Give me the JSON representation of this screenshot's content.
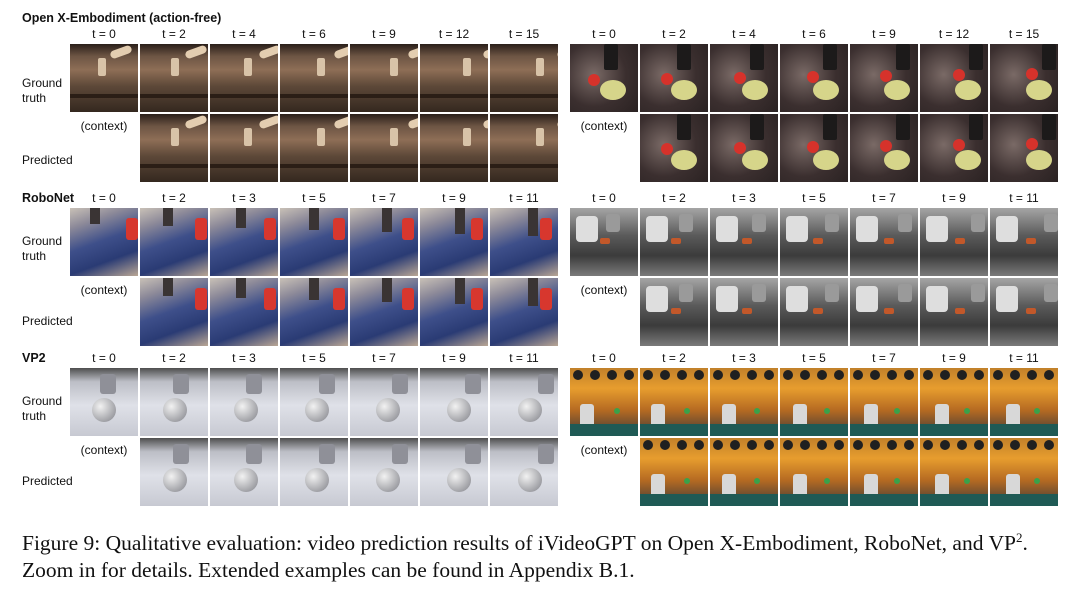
{
  "figure": {
    "sections": [
      {
        "title": "Open X-Embodiment (action-free)",
        "left_ticks": [
          "t = 0",
          "t = 2",
          "t = 4",
          "t = 6",
          "t = 9",
          "t = 12",
          "t = 15"
        ],
        "right_ticks": [
          "t = 0",
          "t = 2",
          "t = 4",
          "t = 6",
          "t = 9",
          "t = 12",
          "t = 15"
        ],
        "left_theme": "oxe-l",
        "right_theme": "oxe-r"
      },
      {
        "title": "RoboNet",
        "left_ticks": [
          "t = 0",
          "t = 2",
          "t = 3",
          "t = 5",
          "t = 7",
          "t = 9",
          "t = 11"
        ],
        "right_ticks": [
          "t = 0",
          "t = 2",
          "t = 3",
          "t = 5",
          "t = 7",
          "t = 9",
          "t = 11"
        ],
        "left_theme": "rn-l",
        "right_theme": "rn-r"
      },
      {
        "title": "VP2",
        "left_ticks": [
          "t = 0",
          "t = 2",
          "t = 3",
          "t = 5",
          "t = 7",
          "t = 9",
          "t = 11"
        ],
        "right_ticks": [
          "t = 0",
          "t = 2",
          "t = 3",
          "t = 5",
          "t = 7",
          "t = 9",
          "t = 11"
        ],
        "left_theme": "vp-l",
        "right_theme": "vp-r"
      }
    ],
    "labels": {
      "ground_truth_line1": "Ground",
      "ground_truth_line2": "truth",
      "predicted": "Predicted",
      "context": "(context)"
    },
    "caption": {
      "prefix": "Figure 9: Qualitative evaluation: video prediction results of iVideoGPT on Open X-Embodiment, RoboNet, and VP",
      "superscript": "2",
      "suffix": ". Zoom in for details. Extended examples can be found in Appendix B.1."
    },
    "colors": {
      "oxe_left": "#8e6e56",
      "oxe_right": "#3b2f2f",
      "robonet_left": "#2a3b74",
      "robonet_right": "#5b5b5b",
      "vp2_left": "#dfe1e8",
      "vp2_right": "#e79d2e"
    }
  }
}
